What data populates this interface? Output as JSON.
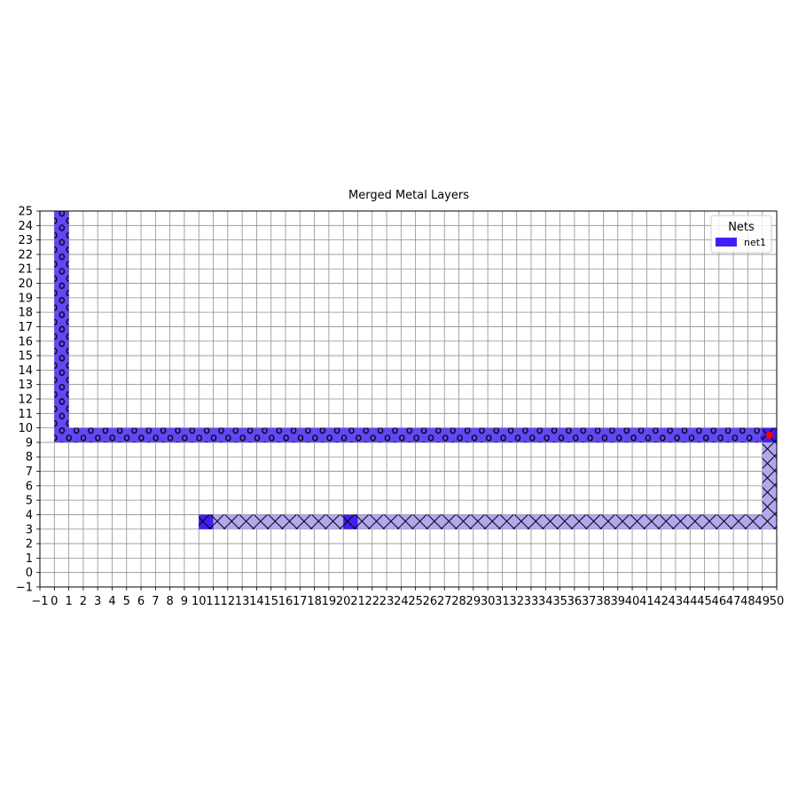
{
  "chart_data": {
    "type": "heatmap",
    "title": "Merged Metal Layers",
    "xlabel": "",
    "ylabel": "",
    "xlim": [
      -1,
      50
    ],
    "ylim": [
      -1,
      25
    ],
    "x_ticks": [
      "−1",
      "0",
      "1",
      "2",
      "3",
      "4",
      "5",
      "6",
      "7",
      "8",
      "9",
      "10",
      "11",
      "12",
      "13",
      "14",
      "15",
      "16",
      "17",
      "18",
      "19",
      "20",
      "21",
      "22",
      "23",
      "24",
      "25",
      "26",
      "27",
      "28",
      "29",
      "30",
      "31",
      "32",
      "33",
      "34",
      "35",
      "36",
      "37",
      "38",
      "39",
      "40",
      "41",
      "42",
      "43",
      "44",
      "45",
      "46",
      "47",
      "48",
      "49",
      "50"
    ],
    "y_ticks": [
      "−1",
      "0",
      "1",
      "2",
      "3",
      "4",
      "5",
      "6",
      "7",
      "8",
      "9",
      "10",
      "11",
      "12",
      "13",
      "14",
      "15",
      "16",
      "17",
      "18",
      "19",
      "20",
      "21",
      "22",
      "23",
      "24",
      "25"
    ],
    "grid": true,
    "legend": {
      "title": "Nets",
      "placement": "top-right",
      "entries": [
        {
          "label": "net1",
          "color": "#3f1ff5"
        }
      ]
    },
    "colors": {
      "upper_layer": "#6048f4",
      "lower_layer": "#b2a8f2",
      "via": "#3f1ff5",
      "pin": "#ff0000",
      "grid": "#8f8f8f"
    },
    "series": [
      {
        "layer": "upper",
        "hatch": "o",
        "cells": [
          [
            0,
            9
          ],
          [
            1,
            9
          ],
          [
            2,
            9
          ],
          [
            3,
            9
          ],
          [
            4,
            9
          ],
          [
            5,
            9
          ],
          [
            6,
            9
          ],
          [
            7,
            9
          ],
          [
            8,
            9
          ],
          [
            9,
            9
          ],
          [
            10,
            9
          ],
          [
            11,
            9
          ],
          [
            12,
            9
          ],
          [
            13,
            9
          ],
          [
            14,
            9
          ],
          [
            15,
            9
          ],
          [
            16,
            9
          ],
          [
            17,
            9
          ],
          [
            18,
            9
          ],
          [
            19,
            9
          ],
          [
            20,
            9
          ],
          [
            21,
            9
          ],
          [
            22,
            9
          ],
          [
            23,
            9
          ],
          [
            24,
            9
          ],
          [
            25,
            9
          ],
          [
            26,
            9
          ],
          [
            27,
            9
          ],
          [
            28,
            9
          ],
          [
            29,
            9
          ],
          [
            30,
            9
          ],
          [
            31,
            9
          ],
          [
            32,
            9
          ],
          [
            33,
            9
          ],
          [
            34,
            9
          ],
          [
            35,
            9
          ],
          [
            36,
            9
          ],
          [
            37,
            9
          ],
          [
            38,
            9
          ],
          [
            39,
            9
          ],
          [
            40,
            9
          ],
          [
            41,
            9
          ],
          [
            42,
            9
          ],
          [
            43,
            9
          ],
          [
            44,
            9
          ],
          [
            45,
            9
          ],
          [
            46,
            9
          ],
          [
            47,
            9
          ],
          [
            48,
            9
          ],
          [
            0,
            10
          ],
          [
            0,
            11
          ],
          [
            0,
            12
          ],
          [
            0,
            13
          ],
          [
            0,
            14
          ],
          [
            0,
            15
          ],
          [
            0,
            16
          ],
          [
            0,
            17
          ],
          [
            0,
            18
          ],
          [
            0,
            19
          ],
          [
            0,
            20
          ],
          [
            0,
            21
          ],
          [
            0,
            22
          ],
          [
            0,
            23
          ],
          [
            0,
            24
          ]
        ]
      },
      {
        "layer": "lower",
        "hatch": "x",
        "cells": [
          [
            11,
            3
          ],
          [
            12,
            3
          ],
          [
            13,
            3
          ],
          [
            14,
            3
          ],
          [
            15,
            3
          ],
          [
            16,
            3
          ],
          [
            17,
            3
          ],
          [
            18,
            3
          ],
          [
            19,
            3
          ],
          [
            21,
            3
          ],
          [
            22,
            3
          ],
          [
            23,
            3
          ],
          [
            24,
            3
          ],
          [
            25,
            3
          ],
          [
            26,
            3
          ],
          [
            27,
            3
          ],
          [
            28,
            3
          ],
          [
            29,
            3
          ],
          [
            30,
            3
          ],
          [
            31,
            3
          ],
          [
            32,
            3
          ],
          [
            33,
            3
          ],
          [
            34,
            3
          ],
          [
            35,
            3
          ],
          [
            36,
            3
          ],
          [
            37,
            3
          ],
          [
            38,
            3
          ],
          [
            39,
            3
          ],
          [
            40,
            3
          ],
          [
            41,
            3
          ],
          [
            42,
            3
          ],
          [
            43,
            3
          ],
          [
            44,
            3
          ],
          [
            45,
            3
          ],
          [
            46,
            3
          ],
          [
            47,
            3
          ],
          [
            48,
            3
          ],
          [
            49,
            3
          ],
          [
            49,
            4
          ],
          [
            49,
            5
          ],
          [
            49,
            6
          ],
          [
            49,
            7
          ],
          [
            49,
            8
          ]
        ]
      }
    ],
    "vias": [
      [
        10,
        3
      ],
      [
        20,
        3
      ],
      [
        49,
        9
      ]
    ],
    "pins": [
      [
        49,
        9
      ]
    ]
  }
}
